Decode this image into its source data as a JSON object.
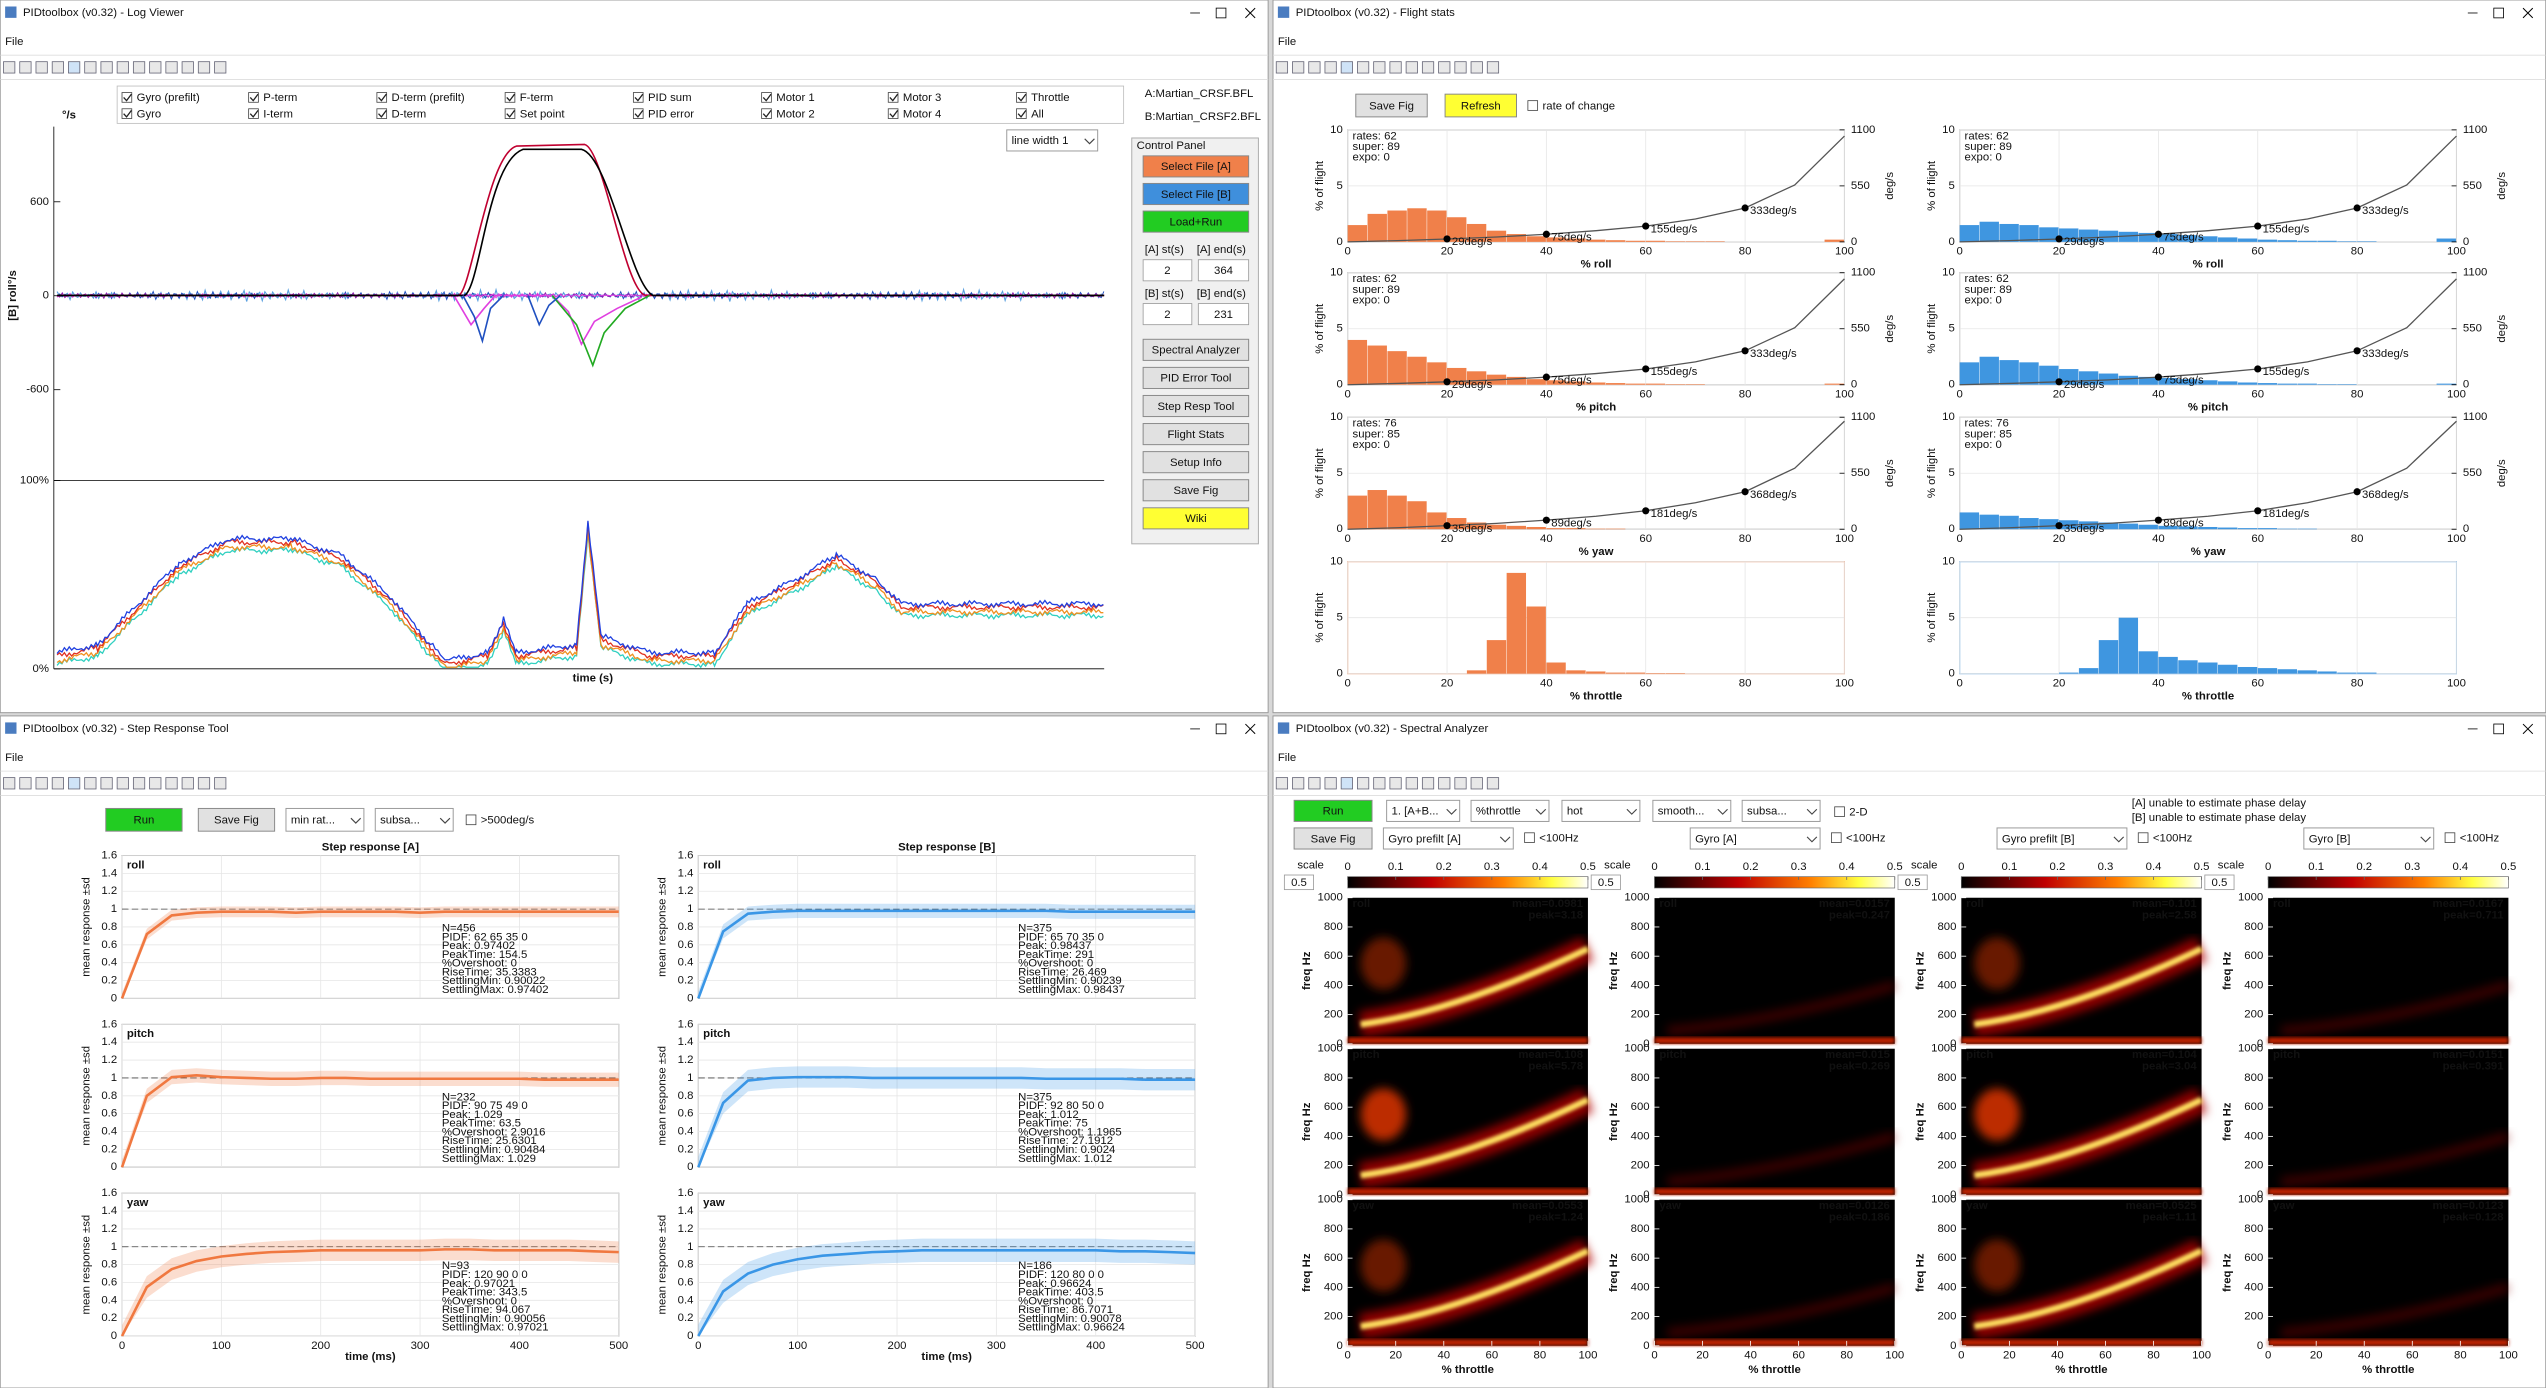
{
  "windows": [
    {
      "title": "PIDtoolbox (v0.32) - Log Viewer",
      "menu": "File"
    },
    {
      "title": "PIDtoolbox (v0.32) - Flight stats",
      "menu": "File"
    },
    {
      "title": "PIDtoolbox (v0.32) - Step Response Tool",
      "menu": "File"
    },
    {
      "title": "PIDtoolbox (v0.32) - Spectral Analyzer",
      "menu": "File"
    }
  ],
  "log_viewer": {
    "legend": [
      {
        "label": "Gyro (prefilt)",
        "color": "#a0a0a0"
      },
      {
        "label": "Gyro",
        "color": "#000000"
      },
      {
        "label": "P-term",
        "color": "#22aa22"
      },
      {
        "label": "I-term",
        "color": "#e0a020"
      },
      {
        "label": "D-term (prefilt)",
        "color": "#5aa0e0"
      },
      {
        "label": "D-term",
        "color": "#2050c0"
      },
      {
        "label": "F-term",
        "color": "#e04040"
      },
      {
        "label": "Set point",
        "color": "#c00030"
      },
      {
        "label": "PID sum",
        "color": "#e040e0"
      },
      {
        "label": "PID error",
        "color": "#9020b0"
      },
      {
        "label": "Motor 1",
        "color": "#e03020"
      },
      {
        "label": "Motor 2",
        "color": "#f09020"
      },
      {
        "label": "Motor 3",
        "color": "#2040e0"
      },
      {
        "label": "Motor 4",
        "color": "#30d0c0"
      },
      {
        "label": "Throttle",
        "color": "#808080"
      },
      {
        "label": "All",
        "color": "#000000"
      }
    ],
    "files": [
      "A:Martian_CRSF.BFL",
      "B:Martian_CRSF2.BFL"
    ],
    "line_width": "line width 1",
    "y_unit": "°/s",
    "y_label": "[B] roll°/s",
    "ylim": [
      -1180,
      1080
    ],
    "yticks": [
      600,
      0,
      -600
    ],
    "motor_ylim": [
      0,
      100
    ],
    "motor_yticks": [
      {
        "value": 100,
        "label": "100%"
      },
      {
        "value": 0,
        "label": "0%"
      }
    ],
    "x_label": "time (s)",
    "control_panel": {
      "title": "Control Panel",
      "file_buttons": [
        {
          "label": "Select File [A]",
          "color": "#f0804a"
        },
        {
          "label": "Select File [B]",
          "color": "#3f8fdc"
        },
        {
          "label": "Load+Run",
          "color": "#22cc22"
        }
      ],
      "range_labels": [
        [
          "[A] st(s)",
          "[A] end(s)"
        ],
        [
          "[B] st(s)",
          "[B] end(s)"
        ]
      ],
      "range_values": [
        [
          "2",
          "364"
        ],
        [
          "2",
          "231"
        ]
      ],
      "tool_buttons": [
        {
          "label": "Spectral Analyzer",
          "color": "#e1e1e1"
        },
        {
          "label": "PID Error Tool",
          "color": "#e1e1e1"
        },
        {
          "label": "Step Resp Tool",
          "color": "#e1e1e1"
        },
        {
          "label": "Flight Stats",
          "color": "#e1e1e1"
        },
        {
          "label": "Setup Info",
          "color": "#e1e1e1"
        },
        {
          "label": "Save Fig",
          "color": "#e1e1e1"
        },
        {
          "label": "Wiki",
          "color": "#ffff33"
        }
      ]
    }
  },
  "flight_stats": {
    "buttons": [
      {
        "label": "Save Fig",
        "color": "#e1e1e1"
      },
      {
        "label": "Refresh",
        "color": "#ffff33"
      }
    ],
    "checkbox": "rate of change",
    "colors": [
      "#f0804a",
      "#3f96e0"
    ],
    "y_label": "% of flight",
    "y2_label": "deg/s",
    "ylim": [
      0,
      10
    ],
    "yticks": [
      0,
      5,
      10
    ],
    "y2lim": [
      0,
      1100
    ],
    "y2ticks": [
      0,
      550,
      1100
    ],
    "xlim": [
      0,
      100
    ],
    "xticks": [
      0,
      20,
      40,
      60,
      80,
      100
    ],
    "bins": [
      0,
      4,
      8,
      12,
      16,
      20,
      24,
      28,
      32,
      36,
      40,
      44,
      48,
      52,
      56,
      60,
      64,
      68,
      72,
      76,
      80,
      84,
      88,
      92,
      96,
      100
    ],
    "curve_x": [
      0,
      10,
      20,
      30,
      40,
      50,
      60,
      70,
      80,
      90,
      100
    ],
    "rows": [
      {
        "x_label": "% roll",
        "rate_text": [
          "rates: 62",
          "super: 89",
          "expo: 0"
        ],
        "curve": [
          0,
          12,
          29,
          48,
          75,
          110,
          155,
          225,
          333,
          560,
          1040
        ],
        "points": [
          {
            "x": 20,
            "value": 29,
            "label": "29deg/s"
          },
          {
            "x": 40,
            "value": 75,
            "label": "75deg/s"
          },
          {
            "x": 60,
            "value": 155,
            "label": "155deg/s"
          },
          {
            "x": 80,
            "value": 333,
            "label": "333deg/s"
          }
        ],
        "hist": [
          [
            1.5,
            2.5,
            2.8,
            3,
            2.8,
            2.2,
            1.6,
            1.0,
            0.7,
            0.5,
            0.4,
            0.3,
            0.2,
            0.15,
            0.1,
            0.1,
            0.05,
            0.05,
            0.05,
            0,
            0,
            0,
            0,
            0,
            0.2
          ],
          [
            1.5,
            1.8,
            1.6,
            1.5,
            1.3,
            1.2,
            1.1,
            1.0,
            0.9,
            0.8,
            0.7,
            0.6,
            0.5,
            0.4,
            0.3,
            0.2,
            0.15,
            0.1,
            0.1,
            0.05,
            0.05,
            0,
            0,
            0,
            0.3
          ]
        ]
      },
      {
        "x_label": "% pitch",
        "rate_text": [
          "rates: 62",
          "super: 89",
          "expo: 0"
        ],
        "curve": [
          0,
          12,
          29,
          48,
          75,
          110,
          155,
          225,
          333,
          560,
          1040
        ],
        "points": [
          {
            "x": 20,
            "value": 29,
            "label": "29deg/s"
          },
          {
            "x": 40,
            "value": 75,
            "label": "75deg/s"
          },
          {
            "x": 60,
            "value": 155,
            "label": "155deg/s"
          },
          {
            "x": 80,
            "value": 333,
            "label": "333deg/s"
          }
        ],
        "hist": [
          [
            4,
            3.5,
            3,
            2.5,
            2,
            1.5,
            1.2,
            0.9,
            0.7,
            0.5,
            0.4,
            0.3,
            0.2,
            0.15,
            0.1,
            0.1,
            0.05,
            0.05,
            0,
            0,
            0,
            0,
            0,
            0,
            0.1
          ],
          [
            2,
            2.5,
            2.2,
            2,
            1.7,
            1.4,
            1.2,
            1,
            0.8,
            0.7,
            0.6,
            0.5,
            0.4,
            0.3,
            0.2,
            0.15,
            0.1,
            0.1,
            0.05,
            0.05,
            0,
            0,
            0,
            0,
            0.1
          ]
        ]
      },
      {
        "x_label": "% yaw",
        "rate_text": [
          "rates: 76",
          "super: 85",
          "expo: 0"
        ],
        "curve": [
          0,
          15,
          35,
          58,
          89,
          128,
          181,
          260,
          368,
          600,
          1060
        ],
        "points": [
          {
            "x": 20,
            "value": 35,
            "label": "35deg/s"
          },
          {
            "x": 40,
            "value": 89,
            "label": "89deg/s"
          },
          {
            "x": 60,
            "value": 181,
            "label": "181deg/s"
          },
          {
            "x": 80,
            "value": 368,
            "label": "368deg/s"
          }
        ],
        "hist": [
          [
            3,
            3.5,
            3,
            2.5,
            1.5,
            1,
            0.6,
            0.4,
            0.3,
            0.2,
            0.1,
            0.1,
            0.05,
            0.05,
            0,
            0,
            0,
            0,
            0,
            0,
            0,
            0,
            0,
            0,
            0
          ],
          [
            1.5,
            1.3,
            1.2,
            1,
            0.9,
            0.8,
            0.7,
            0.6,
            0.5,
            0.4,
            0.3,
            0.25,
            0.2,
            0.15,
            0.1,
            0.1,
            0.05,
            0.05,
            0,
            0,
            0,
            0,
            0,
            0,
            0
          ]
        ]
      },
      {
        "x_label": "% throttle",
        "hist": [
          [
            0,
            0,
            0,
            0,
            0,
            0,
            0.3,
            3,
            9,
            6,
            1,
            0.3,
            0.2,
            0.1,
            0.1,
            0.05,
            0.05,
            0,
            0,
            0,
            0,
            0,
            0,
            0,
            0
          ],
          [
            0,
            0,
            0,
            0,
            0,
            0.1,
            0.5,
            3,
            5,
            2,
            1.5,
            1.2,
            1,
            0.8,
            0.6,
            0.5,
            0.4,
            0.3,
            0.2,
            0.1,
            0.1,
            0,
            0,
            0,
            0
          ]
        ]
      }
    ]
  },
  "step_response": {
    "buttons": [
      {
        "label": "Run",
        "color": "#22cc22"
      },
      {
        "label": "Save Fig",
        "color": "#e1e1e1"
      }
    ],
    "dropdowns": [
      "min rat...",
      "subsa..."
    ],
    "checkbox": ">500deg/s",
    "titles": [
      "Step response [A]",
      "Step response [B]"
    ],
    "colors": [
      "#f07840",
      "#3a96e6"
    ],
    "y_label": "mean response ±sd",
    "x_label": "time (ms)",
    "ylim": [
      0,
      1.6
    ],
    "yticks": [
      0,
      0.2,
      0.4,
      0.6,
      0.8,
      1,
      1.2,
      1.4,
      1.6
    ],
    "xlim": [
      0,
      500
    ],
    "xticks": [
      0,
      100,
      200,
      300,
      400,
      500
    ],
    "t": [
      0,
      25,
      50,
      75,
      100,
      125,
      150,
      175,
      200,
      225,
      250,
      275,
      300,
      325,
      350,
      375,
      400,
      425,
      450,
      475,
      500
    ],
    "rows": [
      {
        "label": "roll",
        "panels": [
          {
            "stats": [
              "N=456",
              "PIDF: 62  65  35   0",
              "Peak: 0.97402",
              "PeakTime: 154.5",
              "%Overshoot: 0",
              "RiseTime: 35.3383",
              "SettlingMin: 0.90022",
              "SettlingMax: 0.97402"
            ],
            "response": [
              0,
              0.72,
              0.93,
              0.96,
              0.97,
              0.97,
              0.97,
              0.96,
              0.97,
              0.97,
              0.97,
              0.97,
              0.96,
              0.97,
              0.97,
              0.97,
              0.97,
              0.97,
              0.97,
              0.97,
              0.97
            ],
            "sd": 0.06
          },
          {
            "stats": [
              "N=375",
              "PIDF: 65  70  35   0",
              "Peak: 0.98437",
              "PeakTime: 291",
              "%Overshoot: 0",
              "RiseTime: 26.469",
              "SettlingMin: 0.90239",
              "SettlingMax: 0.98437"
            ],
            "response": [
              0,
              0.75,
              0.95,
              0.97,
              0.98,
              0.98,
              0.98,
              0.98,
              0.98,
              0.98,
              0.98,
              0.98,
              0.98,
              0.98,
              0.98,
              0.97,
              0.97,
              0.97,
              0.97,
              0.97,
              0.97
            ],
            "sd": 0.08
          }
        ]
      },
      {
        "label": "pitch",
        "panels": [
          {
            "stats": [
              "N=232",
              "PIDF: 90  75  49   0",
              "Peak: 1.029",
              "PeakTime: 63.5",
              "%Overshoot: 2.9016",
              "RiseTime: 25.6301",
              "SettlingMin: 0.90484",
              "SettlingMax: 1.029"
            ],
            "response": [
              0,
              0.8,
              1.01,
              1.03,
              1.01,
              1,
              0.99,
              0.99,
              1,
              1,
              0.99,
              0.99,
              0.99,
              0.99,
              0.99,
              0.99,
              0.99,
              0.98,
              0.98,
              0.98,
              0.98
            ],
            "sd": 0.08
          },
          {
            "stats": [
              "N=375",
              "PIDF: 92  80  50   0",
              "Peak: 1.012",
              "PeakTime: 75",
              "%Overshoot: 1.1965",
              "RiseTime: 27.1912",
              "SettlingMin: 0.9024",
              "SettlingMax: 1.012"
            ],
            "response": [
              0,
              0.72,
              0.97,
              1.0,
              1.01,
              1.01,
              1.01,
              1.0,
              1.0,
              1.0,
              1.0,
              1.0,
              1.0,
              1.0,
              0.99,
              0.99,
              0.99,
              0.99,
              0.98,
              0.98,
              0.98
            ],
            "sd": 0.12
          }
        ]
      },
      {
        "label": "yaw",
        "panels": [
          {
            "stats": [
              "N=93",
              "PIDF: 120  90   0   0",
              "Peak: 0.97021",
              "PeakTime: 343.5",
              "%Overshoot: 0",
              "RiseTime: 94.067",
              "SettlingMin: 0.90056",
              "SettlingMax: 0.97021"
            ],
            "response": [
              0,
              0.55,
              0.75,
              0.84,
              0.89,
              0.92,
              0.94,
              0.95,
              0.96,
              0.96,
              0.96,
              0.96,
              0.96,
              0.97,
              0.97,
              0.96,
              0.96,
              0.96,
              0.96,
              0.95,
              0.94
            ],
            "sd": 0.12
          },
          {
            "stats": [
              "N=186",
              "PIDF: 120  80   0   0",
              "Peak: 0.96624",
              "PeakTime: 403.5",
              "%Overshoot: 0",
              "RiseTime: 86.7071",
              "SettlingMin: 0.90078",
              "SettlingMax: 0.96624"
            ],
            "response": [
              0,
              0.5,
              0.7,
              0.8,
              0.86,
              0.9,
              0.92,
              0.94,
              0.95,
              0.96,
              0.96,
              0.96,
              0.96,
              0.96,
              0.96,
              0.96,
              0.96,
              0.95,
              0.95,
              0.94,
              0.93
            ],
            "sd": 0.13
          }
        ]
      }
    ]
  },
  "spectral": {
    "buttons": [
      {
        "label": "Run",
        "color": "#22cc22"
      },
      {
        "label": "Save Fig",
        "color": "#e1e1e1"
      }
    ],
    "dropdowns": [
      "1. [A+B...",
      "%throttle",
      "hot",
      "smooth...",
      "subsa..."
    ],
    "checkbox_2d": "2-D",
    "notes": [
      "[A] unable to estimate phase delay",
      "[B] unable to estimate phase delay"
    ],
    "scale_label": "scale",
    "scale_value": "0.5",
    "colorbar_lim": [
      0,
      0.5
    ],
    "colorbar_ticks": [
      0,
      0.1,
      0.2,
      0.3,
      0.4,
      0.5
    ],
    "xlim": [
      0,
      100
    ],
    "xticks": [
      0,
      20,
      40,
      60,
      80,
      100
    ],
    "ylim": [
      0,
      1000
    ],
    "yticks": [
      0,
      200,
      400,
      600,
      800,
      1000
    ],
    "x_label": "% throttle",
    "y_label": "freq Hz",
    "row_labels": [
      "roll",
      "pitch",
      "yaw"
    ],
    "columns": [
      {
        "source": "Gyro prefilt [A]",
        "filter": "<100Hz",
        "panels": [
          [
            "mean=0.0981",
            "peak=3.18"
          ],
          [
            "mean=0.108",
            "peak=5.78"
          ],
          [
            "mean=0.0553",
            "peak=1.24"
          ]
        ]
      },
      {
        "source": "Gyro [A]",
        "filter": "<100Hz",
        "panels": [
          [
            "mean=0.0157",
            "peak=0.247"
          ],
          [
            "mean=0.015",
            "peak=0.269"
          ],
          [
            "mean=0.0126",
            "peak=0.186"
          ]
        ]
      },
      {
        "source": "Gyro prefilt [B]",
        "filter": "<100Hz",
        "panels": [
          [
            "mean=0.101",
            "peak=2.58"
          ],
          [
            "mean=0.104",
            "peak=3.04"
          ],
          [
            "mean=0.0525",
            "peak=1.11"
          ]
        ]
      },
      {
        "source": "Gyro [B]",
        "filter": "<100Hz",
        "panels": [
          [
            "mean=0.0167",
            "peak=0.711"
          ],
          [
            "mean=0.0151",
            "peak=0.391"
          ],
          [
            "mean=0.0123",
            "peak=0.128"
          ]
        ]
      }
    ]
  }
}
